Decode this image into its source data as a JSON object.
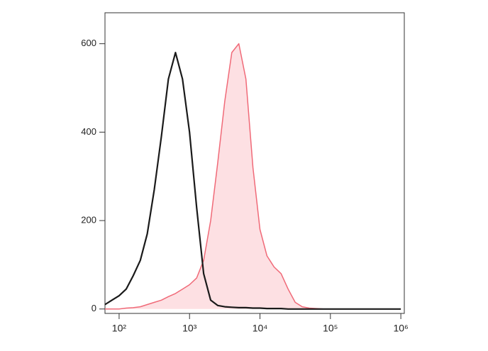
{
  "chart_data": {
    "type": "histogram-line",
    "x": [
      63,
      79,
      100,
      126,
      158,
      200,
      251,
      316,
      398,
      501,
      631,
      794,
      1000,
      1259,
      1585,
      1995,
      2512,
      3162,
      3981,
      5012,
      6310,
      7943,
      10000,
      12589,
      15849,
      19953,
      25119,
      31623,
      39811,
      50119,
      63096,
      79433,
      100000,
      125893,
      158489,
      199526,
      251189,
      316228,
      398107,
      501187,
      630957,
      794328,
      1000000
    ],
    "series": [
      {
        "color": "#1a1a1a",
        "area": false,
        "values": [
          10,
          20,
          30,
          45,
          75,
          110,
          170,
          270,
          390,
          520,
          580,
          520,
          400,
          230,
          80,
          20,
          8,
          5,
          4,
          3,
          3,
          2,
          2,
          1,
          1,
          1,
          0,
          0,
          0,
          0,
          0,
          0,
          0,
          0,
          0,
          0,
          0,
          0,
          0,
          0,
          0,
          0,
          0
        ]
      },
      {
        "color": "#f06a78",
        "area": true,
        "fill": "#fde0e3",
        "values": [
          0,
          0,
          0,
          2,
          3,
          5,
          10,
          15,
          20,
          28,
          35,
          45,
          55,
          70,
          110,
          200,
          330,
          470,
          580,
          600,
          520,
          320,
          180,
          120,
          95,
          80,
          45,
          15,
          5,
          2,
          1,
          0,
          0,
          0,
          0,
          0,
          0,
          0,
          0,
          0,
          0,
          0,
          0
        ]
      }
    ],
    "xscale": "log",
    "xlim": [
      63,
      1120000
    ],
    "xticks": [
      {
        "value": 100,
        "label": "10²"
      },
      {
        "value": 1000,
        "label": "10³"
      },
      {
        "value": 10000,
        "label": "10⁴"
      },
      {
        "value": 100000,
        "label": "10⁵"
      },
      {
        "value": 1000000,
        "label": "10⁶"
      }
    ],
    "ylim": [
      -10,
      670
    ],
    "yticks": [
      0,
      200,
      400,
      600
    ]
  }
}
